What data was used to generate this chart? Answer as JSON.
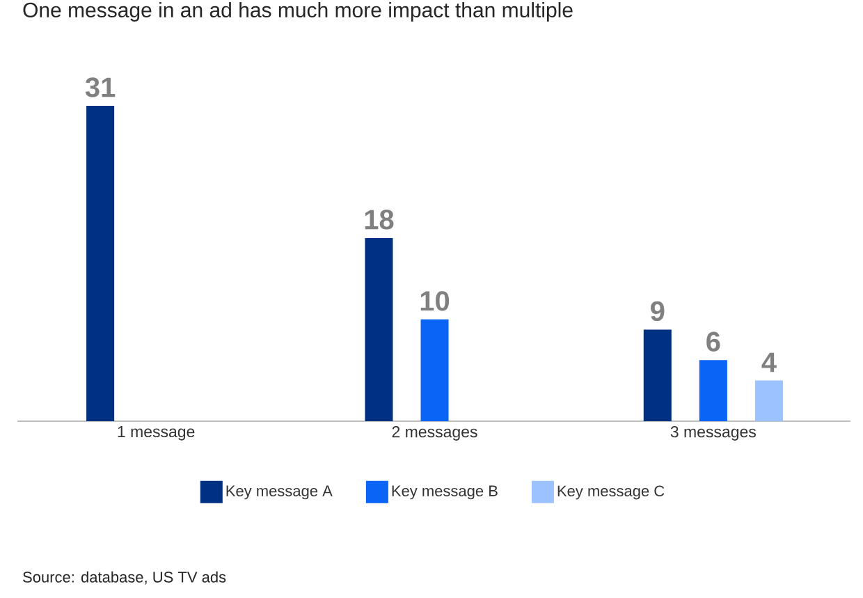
{
  "chart_data": {
    "type": "bar",
    "title": "One message in an ad has much more impact than multiple",
    "categories": [
      "1 message",
      "2 messages",
      "3 messages"
    ],
    "series": [
      {
        "name": "Key message A",
        "color": "#003082",
        "values": [
          31,
          18,
          9
        ]
      },
      {
        "name": "Key message B",
        "color": "#0a64f5",
        "values": [
          null,
          10,
          6
        ]
      },
      {
        "name": "Key message C",
        "color": "#9cc3ff",
        "values": [
          null,
          null,
          4
        ]
      }
    ],
    "data_labels": true,
    "legend": "bottom",
    "tick_labels": "x",
    "annotations": [
      "Source: database, US TV ads"
    ]
  }
}
